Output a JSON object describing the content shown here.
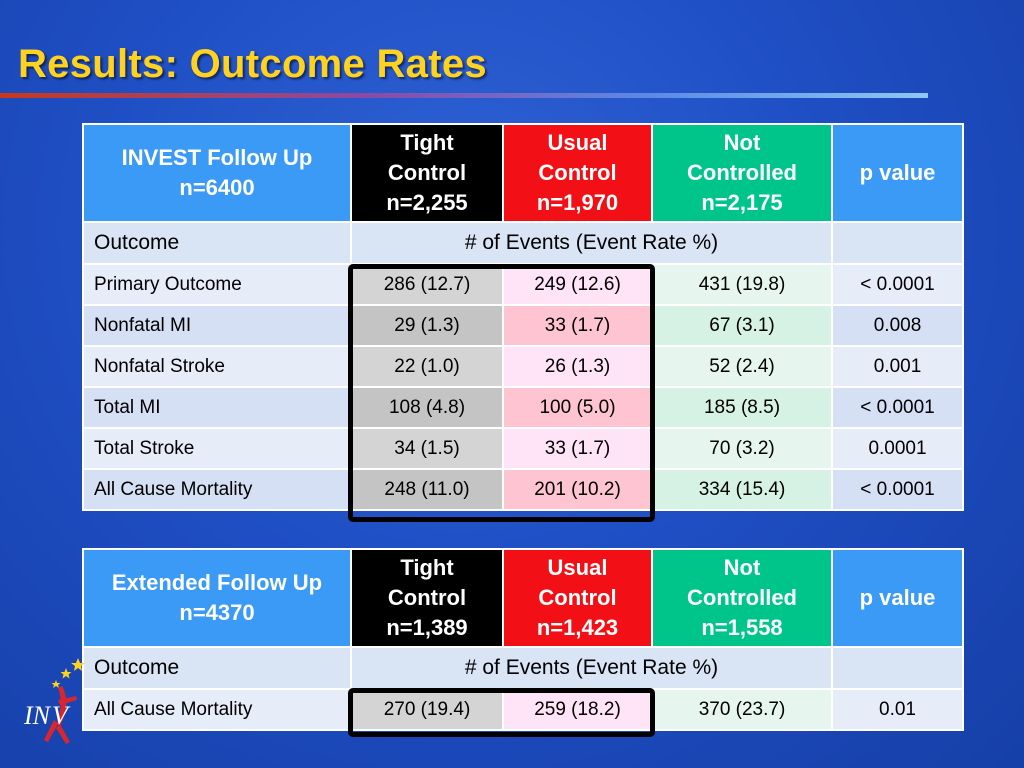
{
  "slide": {
    "title": "Results: Outcome Rates"
  },
  "table1": {
    "header": {
      "first": [
        "INVEST Follow Up",
        "n=6400"
      ],
      "tight": [
        "Tight",
        "Control",
        "n=2,255"
      ],
      "usual": [
        "Usual",
        "Control",
        "n=1,970"
      ],
      "not_controlled": [
        "Not",
        "Controlled",
        "n=2,175"
      ],
      "p": "p value"
    },
    "sub": {
      "outcome": "Outcome",
      "events": "# of Events (Event Rate %)"
    },
    "rows": [
      {
        "name": "Primary Outcome",
        "tight": "286 (12.7)",
        "usual": "249 (12.6)",
        "not_controlled": "431 (19.8)",
        "p": "< 0.0001"
      },
      {
        "name": "Nonfatal MI",
        "tight": "29 (1.3)",
        "usual": "33 (1.7)",
        "not_controlled": "67 (3.1)",
        "p": "0.008"
      },
      {
        "name": "Nonfatal Stroke",
        "tight": "22 (1.0)",
        "usual": "26 (1.3)",
        "not_controlled": "52 (2.4)",
        "p": "0.001"
      },
      {
        "name": "Total MI",
        "tight": "108 (4.8)",
        "usual": "100 (5.0)",
        "not_controlled": "185 (8.5)",
        "p": "< 0.0001"
      },
      {
        "name": "Total Stroke",
        "tight": "34 (1.5)",
        "usual": "33 (1.7)",
        "not_controlled": "70 (3.2)",
        "p": "0.0001"
      },
      {
        "name": "All Cause Mortality",
        "tight": "248 (11.0)",
        "usual": "201 (10.2)",
        "not_controlled": "334 (15.4)",
        "p": "< 0.0001"
      }
    ]
  },
  "table2": {
    "header": {
      "first": [
        "Extended Follow Up",
        "n=4370"
      ],
      "tight": [
        "Tight",
        "Control",
        "n=1,389"
      ],
      "usual": [
        "Usual",
        "Control",
        "n=1,423"
      ],
      "not_controlled": [
        "Not",
        "Controlled",
        "n=1,558"
      ],
      "p": "p value"
    },
    "sub": {
      "outcome": "Outcome",
      "events": "# of Events (Event Rate %)"
    },
    "rows": [
      {
        "name": "All Cause Mortality",
        "tight": "270 (19.4)",
        "usual": "259 (18.2)",
        "not_controlled": "370 (23.7)",
        "p": "0.01"
      }
    ]
  },
  "logo": {
    "text": "INV",
    "icon": "invest-logo-icon"
  },
  "colors": {
    "title": "#ffd21f",
    "header_blue": "#3b9af5",
    "tight": "#000000",
    "usual": "#f21016",
    "not_controlled": "#00c58a"
  }
}
